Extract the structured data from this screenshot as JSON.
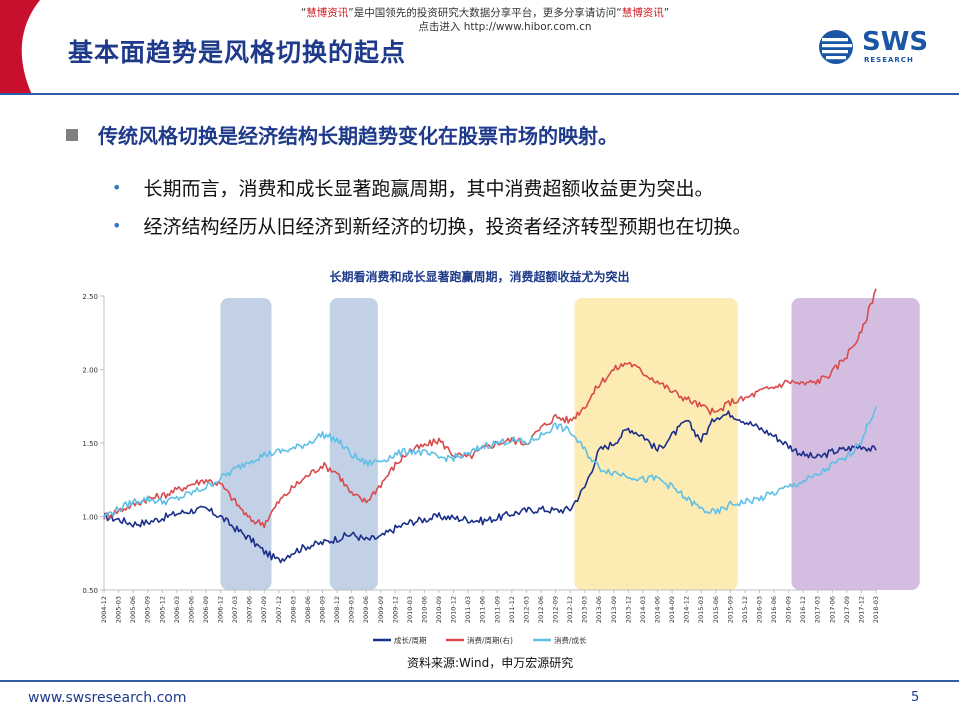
{
  "watermark": {
    "quote_open": "“",
    "brand": "慧博资讯",
    "quote_close": "”",
    "text_mid": "是中国领先的投资研究大数据分享平台，更多分享请访问“",
    "brand2": "慧博资讯",
    "text_end": "”",
    "line2": "点击进入 http://www.hibor.com.cn"
  },
  "slide": {
    "title": "基本面趋势是风格切换的起点",
    "main_point": "传统风格切换是经济结构长期趋势变化在股票市场的映射。",
    "sub_points": [
      "长期而言，消费和成长显著跑赢周期，其中消费超额收益更为突出。",
      "经济结构经历从旧经济到新经济的切换，投资者经济转型预期也在切换。"
    ],
    "source": "资料来源:Wind，申万宏源研究",
    "footer_url": "www.swsresearch.com",
    "page_number": "5"
  },
  "logo": {
    "name": "SWS",
    "sub": "RESEARCH",
    "color": "#1b56a4"
  },
  "colors": {
    "title_blue": "#1f3a8a",
    "accent_red": "#c8102e",
    "rule_blue": "#2f5da8"
  },
  "chart_data": {
    "type": "line",
    "title": "长期看消费和成长显著跑赢周期，消费超额收益尤为突出",
    "ylim": [
      0.5,
      2.5
    ],
    "y_ticks": [
      "0.50",
      "1.00",
      "1.50",
      "2.00",
      "2.50"
    ],
    "x_ticks": [
      "2004-12",
      "2005-03",
      "2005-06",
      "2005-09",
      "2005-12",
      "2006-03",
      "2006-06",
      "2006-09",
      "2006-12",
      "2007-03",
      "2007-06",
      "2007-09",
      "2007-12",
      "2008-03",
      "2008-06",
      "2008-09",
      "2008-12",
      "2009-03",
      "2009-06",
      "2009-09",
      "2009-12",
      "2010-03",
      "2010-06",
      "2010-09",
      "2010-12",
      "2011-03",
      "2011-06",
      "2011-09",
      "2011-12",
      "2012-03",
      "2012-06",
      "2012-09",
      "2012-12",
      "2013-03",
      "2013-06",
      "2013-09",
      "2013-12",
      "2014-03",
      "2014-06",
      "2014-09",
      "2014-12",
      "2015-03",
      "2015-06",
      "2015-09",
      "2015-12",
      "2016-03",
      "2016-06",
      "2016-09",
      "2016-12",
      "2017-03",
      "2017-06",
      "2017-09",
      "2017-12",
      "2018-03"
    ],
    "highlight_bands": [
      {
        "from": 8.0,
        "to": 11.5,
        "color": "#b7c9e2"
      },
      {
        "from": 15.5,
        "to": 18.8,
        "color": "#b7c9e2"
      },
      {
        "from": 32.3,
        "to": 43.5,
        "color": "#fbe7a6"
      },
      {
        "from": 47.2,
        "to": 56.0,
        "color": "#cbb2da"
      }
    ],
    "series": [
      {
        "name": "成长/周期",
        "color": "#1b2f8a",
        "values": [
          1.0,
          0.98,
          0.95,
          0.96,
          0.99,
          1.02,
          1.04,
          1.05,
          1.0,
          0.92,
          0.85,
          0.76,
          0.7,
          0.76,
          0.8,
          0.82,
          0.85,
          0.88,
          0.84,
          0.86,
          0.92,
          0.96,
          0.98,
          1.0,
          0.99,
          0.98,
          0.97,
          0.99,
          1.02,
          1.04,
          1.05,
          1.04,
          1.05,
          1.2,
          1.45,
          1.5,
          1.6,
          1.55,
          1.45,
          1.55,
          1.65,
          1.52,
          1.68,
          1.7,
          1.65,
          1.6,
          1.55,
          1.48,
          1.42,
          1.4,
          1.44,
          1.46,
          1.48,
          1.45
        ]
      },
      {
        "name": "消费/周期(右)",
        "color": "#d94b4b",
        "values": [
          1.0,
          1.04,
          1.08,
          1.12,
          1.14,
          1.18,
          1.22,
          1.25,
          1.22,
          1.1,
          0.98,
          0.95,
          1.1,
          1.2,
          1.28,
          1.35,
          1.3,
          1.15,
          1.1,
          1.22,
          1.35,
          1.45,
          1.48,
          1.52,
          1.42,
          1.4,
          1.46,
          1.5,
          1.52,
          1.5,
          1.6,
          1.68,
          1.65,
          1.75,
          1.9,
          2.0,
          2.05,
          1.98,
          1.92,
          1.85,
          1.8,
          1.75,
          1.7,
          1.78,
          1.8,
          1.85,
          1.88,
          1.92,
          1.9,
          1.92,
          1.98,
          2.1,
          2.25,
          2.55
        ]
      },
      {
        "name": "消费/成长",
        "color": "#5ec0e6",
        "values": [
          1.0,
          1.05,
          1.1,
          1.12,
          1.1,
          1.12,
          1.16,
          1.2,
          1.26,
          1.32,
          1.38,
          1.42,
          1.44,
          1.46,
          1.5,
          1.56,
          1.52,
          1.42,
          1.36,
          1.38,
          1.42,
          1.45,
          1.43,
          1.4,
          1.4,
          1.42,
          1.48,
          1.5,
          1.52,
          1.5,
          1.55,
          1.62,
          1.58,
          1.45,
          1.33,
          1.3,
          1.28,
          1.25,
          1.26,
          1.2,
          1.12,
          1.05,
          1.02,
          1.08,
          1.1,
          1.12,
          1.16,
          1.2,
          1.24,
          1.28,
          1.35,
          1.4,
          1.52,
          1.75
        ]
      }
    ]
  }
}
